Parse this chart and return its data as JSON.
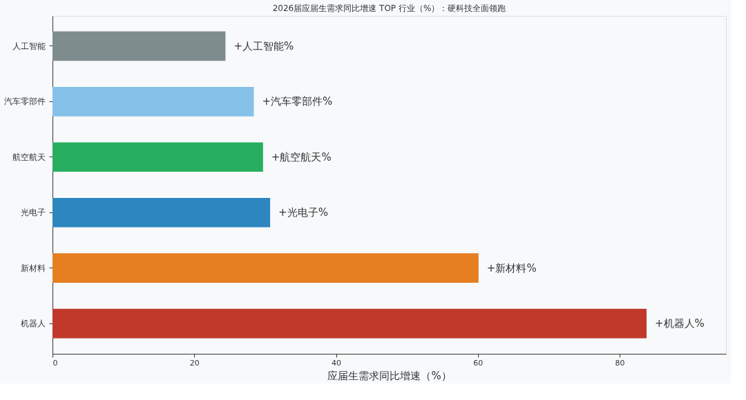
{
  "chart_data": {
    "type": "bar",
    "orientation": "horizontal",
    "title": "2026届应届生需求同比增速 TOP 行业（%）：硬科技全面领跑",
    "xlabel": "应届生需求同比增速（%）",
    "categories": [
      "人工智能",
      "汽车零部件",
      "航空航天",
      "光电子",
      "新材料",
      "机器人"
    ],
    "values": [
      24.4,
      28.4,
      29.7,
      30.7,
      60.1,
      83.8
    ],
    "colors": [
      "#7f8c8d",
      "#85c1e9",
      "#27ae60",
      "#2e86c1",
      "#e67e22",
      "#c0392b"
    ],
    "value_labels": [
      "+人工智能%",
      "+汽车零部件%",
      "+航空航天%",
      "+光电子%",
      "+新材料%",
      "+机器人%"
    ],
    "xlim": [
      0,
      95
    ],
    "xticks": [
      0,
      20,
      40,
      60,
      80
    ],
    "grid": false
  }
}
